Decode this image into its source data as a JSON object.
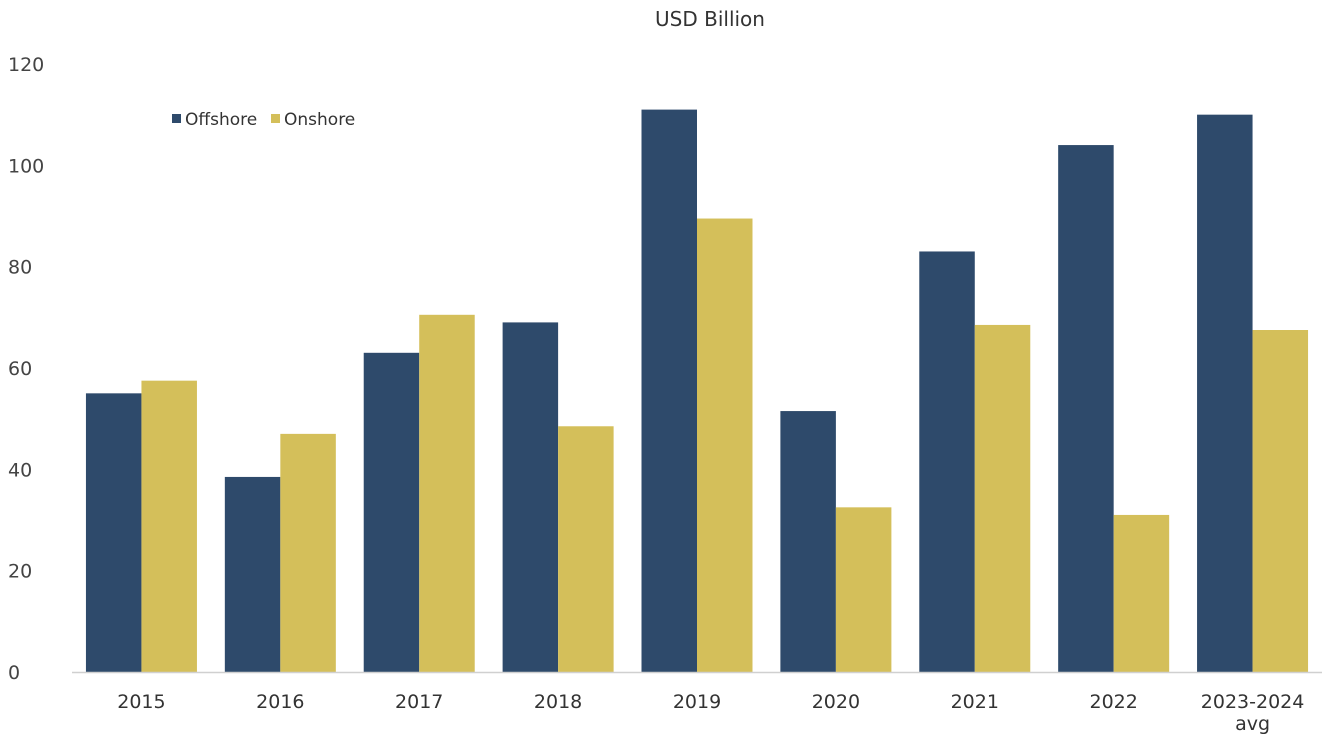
{
  "chart_data": {
    "type": "bar",
    "title": "USD Billion",
    "xlabel": "",
    "ylabel": "",
    "categories": [
      "2015",
      "2016",
      "2017",
      "2018",
      "2019",
      "2020",
      "2021",
      "2022",
      "2023-2024 avg"
    ],
    "series": [
      {
        "name": "Offshore",
        "color": "#2e4a6b",
        "values": [
          55,
          38.5,
          63,
          69,
          111,
          51.5,
          83,
          104,
          110
        ]
      },
      {
        "name": "Onshore",
        "color": "#d4bf5a",
        "values": [
          57.5,
          47,
          70.5,
          48.5,
          89.5,
          32.5,
          68.5,
          31,
          67.5
        ]
      }
    ],
    "ylim": [
      0,
      120
    ],
    "yticks": [
      0,
      20,
      40,
      60,
      80,
      100,
      120
    ],
    "grid": false,
    "legend_position": "top-left"
  }
}
